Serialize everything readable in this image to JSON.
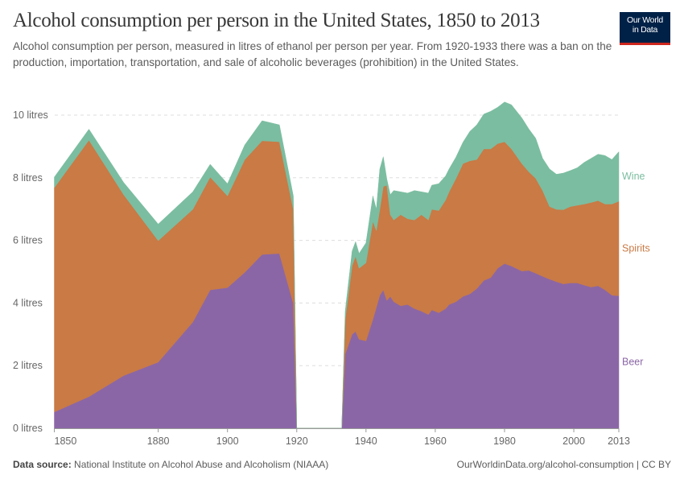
{
  "header": {
    "title": "Alcohol consumption per person in the United States, 1850 to 2013",
    "subtitle": "Alcohol consumption per person, measured in litres of ethanol per person per year. From 1920-1933 there was a ban on the production, importation, transportation, and sale of alcoholic beverages (prohibition) in the United States.",
    "logo_line1": "Our World",
    "logo_line2": "in Data"
  },
  "footer": {
    "source_label": "Data source:",
    "source": "National Institute on Alcohol Abuse and Alcoholism (NIAAA)",
    "credit": "OurWorldinData.org/alcohol-consumption | CC BY"
  },
  "chart_data": {
    "type": "area",
    "stacked": true,
    "title": "Alcohol consumption per person in the United States, 1850 to 2013",
    "xlabel": "",
    "ylabel": "",
    "xlim": [
      1850,
      2013
    ],
    "ylim": [
      0,
      10
    ],
    "grid": "horizontal dashed",
    "legend": "right (inline labels)",
    "y_ticks": [
      "0 litres",
      "2 litres",
      "4 litres",
      "6 litres",
      "8 litres",
      "10 litres"
    ],
    "y_tick_values": [
      0,
      2,
      4,
      6,
      8,
      10
    ],
    "x_ticks": [
      "1850",
      "1880",
      "1900",
      "1920",
      "1940",
      "1960",
      "1980",
      "2000",
      "2013"
    ],
    "x_tick_values": [
      1850,
      1880,
      1900,
      1920,
      1940,
      1960,
      1980,
      2000,
      2013
    ],
    "x": [
      1850,
      1860,
      1870,
      1880,
      1890,
      1895,
      1900,
      1905,
      1910,
      1915,
      1919,
      1920,
      1933,
      1934,
      1936,
      1937,
      1938,
      1940,
      1942,
      1943,
      1944,
      1945,
      1946,
      1947,
      1948,
      1950,
      1952,
      1954,
      1956,
      1958,
      1959,
      1961,
      1963,
      1964,
      1966,
      1968,
      1970,
      1972,
      1974,
      1976,
      1978,
      1980,
      1982,
      1985,
      1987,
      1989,
      1991,
      1993,
      1995,
      1997,
      1999,
      2001,
      2003,
      2005,
      2007,
      2009,
      2011,
      2013
    ],
    "series": [
      {
        "name": "Beer",
        "color": "#8b66a6",
        "values": [
          0.52,
          1.01,
          1.68,
          2.11,
          3.39,
          4.42,
          4.49,
          4.98,
          5.55,
          5.58,
          3.99,
          0,
          0,
          2.37,
          3.0,
          3.09,
          2.84,
          2.79,
          3.48,
          3.86,
          4.25,
          4.42,
          4.08,
          4.21,
          4.04,
          3.91,
          3.95,
          3.82,
          3.74,
          3.63,
          3.78,
          3.69,
          3.82,
          3.95,
          4.04,
          4.21,
          4.29,
          4.46,
          4.72,
          4.81,
          5.11,
          5.26,
          5.18,
          5.02,
          5.04,
          4.95,
          4.85,
          4.76,
          4.68,
          4.61,
          4.64,
          4.64,
          4.57,
          4.51,
          4.55,
          4.42,
          4.25,
          4.23
        ]
      },
      {
        "name": "Spirits",
        "color": "#c97a45",
        "values": [
          7.16,
          8.19,
          5.78,
          3.88,
          3.6,
          3.6,
          2.93,
          3.6,
          3.63,
          3.57,
          3.0,
          0,
          0,
          1.11,
          2.19,
          2.4,
          2.27,
          2.49,
          3.13,
          2.45,
          2.74,
          3.3,
          3.68,
          2.61,
          2.61,
          2.91,
          2.74,
          2.83,
          3.08,
          3.02,
          3.21,
          3.26,
          3.47,
          3.6,
          3.94,
          4.24,
          4.25,
          4.12,
          4.2,
          4.11,
          3.98,
          3.89,
          3.74,
          3.43,
          3.15,
          3.03,
          2.74,
          2.32,
          2.31,
          2.37,
          2.44,
          2.48,
          2.59,
          2.7,
          2.72,
          2.74,
          2.91,
          3.02
        ]
      },
      {
        "name": "Wine",
        "color": "#7bbda0",
        "values": [
          0.34,
          0.35,
          0.39,
          0.53,
          0.56,
          0.41,
          0.39,
          0.47,
          0.64,
          0.54,
          0.43,
          0,
          0,
          0.26,
          0.47,
          0.47,
          0.47,
          0.64,
          0.81,
          0.68,
          1.29,
          0.95,
          0.2,
          0.64,
          0.94,
          0.73,
          0.82,
          0.94,
          0.73,
          0.86,
          0.77,
          0.86,
          0.77,
          0.73,
          0.68,
          0.68,
          0.94,
          1.11,
          1.11,
          1.2,
          1.16,
          1.27,
          1.41,
          1.46,
          1.37,
          1.28,
          1.03,
          1.2,
          1.12,
          1.17,
          1.15,
          1.2,
          1.33,
          1.41,
          1.48,
          1.55,
          1.42,
          1.58
        ]
      }
    ]
  }
}
